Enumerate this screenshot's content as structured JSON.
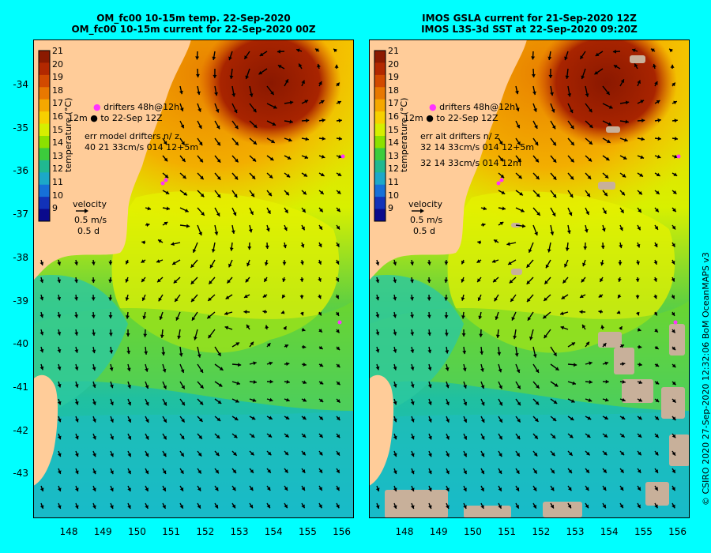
{
  "titles": {
    "left_line1": "OM_fc00 10-15m temp. 22-Sep-2020",
    "left_line2": "OM_fc00 10-15m current for 22-Sep-2020 00Z",
    "right_line1": "IMOS GSLA current for 21-Sep-2020 12Z",
    "right_line2": "IMOS L3S-3d SST at 22-Sep-2020 09:20Z"
  },
  "colorbar": {
    "title": "temperature (°C)",
    "values": [
      "21",
      "20",
      "19",
      "18",
      "17",
      "16",
      "15",
      "14",
      "13",
      "12",
      "11",
      "10",
      "9"
    ],
    "colors": [
      "#8B1A00",
      "#B22800",
      "#D24A00",
      "#E87800",
      "#F5A800",
      "#F7D000",
      "#D6EE00",
      "#8CE000",
      "#3CCC3C",
      "#20B890",
      "#1CA8C8",
      "#1670D8",
      "#1232B8",
      "#0A0A8C"
    ]
  },
  "legend": {
    "drifters_line1": "drifters 48h@12h",
    "drifters_line2": "to 22-Sep 12Z",
    "depth_label": "12m",
    "velocity_title": "velocity",
    "velocity_speed": "0.5 m/s",
    "velocity_time": "0.5 d"
  },
  "left_stats": {
    "header": "err model drifters n/ z",
    "row1": "40 21 33cm/s 014 12+5m"
  },
  "right_stats": {
    "header": "err alt drifters n/ z",
    "row1": "32 14 33cm/s 014 12+5m",
    "row2": "32 14 33cm/s 014 12m"
  },
  "axes": {
    "lat_labels": [
      "-34",
      "-35",
      "-36",
      "-37",
      "-38",
      "-39",
      "-40",
      "-41",
      "-42",
      "-43"
    ],
    "lon_labels": [
      "148",
      "149",
      "150",
      "151",
      "152",
      "153",
      "154",
      "155",
      "156"
    ]
  },
  "credit": "© CSIRO 2020   27-Sep-2020 12:32:06 BoM OceanMAPS v3",
  "colors": {
    "background": "#00FFFF",
    "land": "#FFCC99",
    "missing_data": "#C8B09A",
    "drifter": "#FF33FF",
    "arrows": "#000000"
  }
}
